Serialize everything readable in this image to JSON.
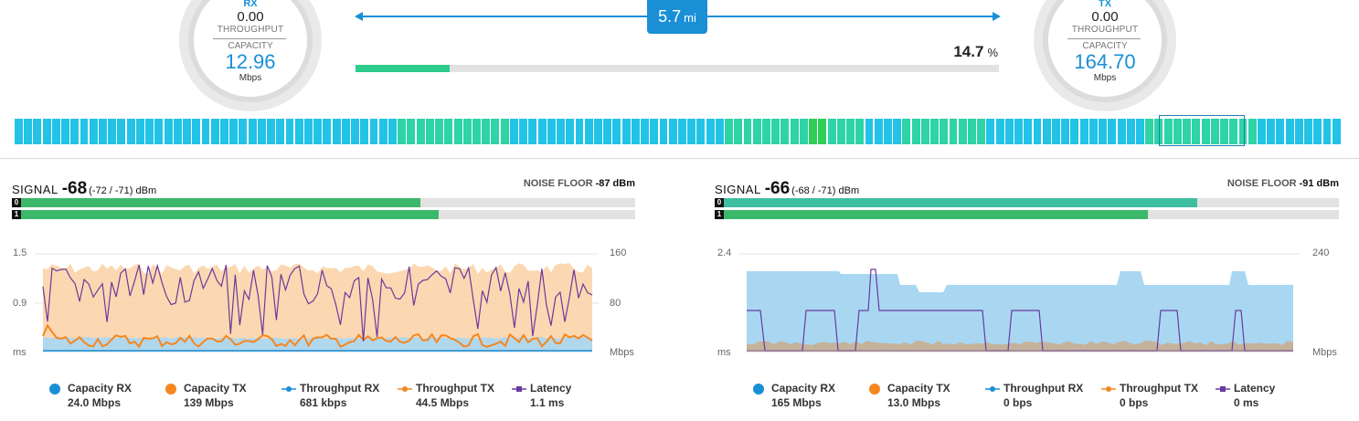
{
  "rx_gauge": {
    "direction": "RX",
    "throughput": "0.00",
    "throughput_label": "THROUGHPUT",
    "capacity_label": "CAPACITY",
    "capacity": "12.96",
    "unit": "Mbps"
  },
  "tx_gauge": {
    "direction": "TX",
    "throughput": "0.00",
    "throughput_label": "THROUGHPUT",
    "capacity_label": "CAPACITY",
    "capacity": "164.70",
    "unit": "Mbps"
  },
  "distance": {
    "value": "5.7",
    "unit": "mi"
  },
  "airtime": {
    "value": "14.7",
    "unit": "%",
    "fraction": 0.147
  },
  "colors": {
    "accent": "#1a8fd6",
    "capacity_rx": "#1a8fd6",
    "capacity_tx": "#f5871f",
    "throughput_rx": "#1a8fd6",
    "throughput_tx": "#f5871f",
    "latency": "#6a3a9c",
    "signal_green": "#3cb86a",
    "signal_teal": "#3cbfa0"
  },
  "spectrum_levels": [
    0,
    0,
    0,
    0,
    0,
    0,
    0,
    0,
    0,
    0,
    0,
    0,
    0,
    0,
    0,
    0,
    0,
    0,
    0,
    0,
    0,
    0,
    0,
    0,
    0,
    0,
    0,
    0,
    0,
    0,
    0,
    0,
    0,
    0,
    0,
    0,
    0,
    0,
    0,
    0,
    0,
    1,
    1,
    1,
    1,
    1,
    1,
    1,
    1,
    1,
    1,
    1,
    1,
    0,
    0,
    0,
    0,
    0,
    0,
    0,
    0,
    0,
    0,
    0,
    0,
    0,
    0,
    0,
    0,
    0,
    0,
    0,
    0,
    0,
    0,
    0,
    1,
    1,
    1,
    1,
    1,
    1,
    1,
    1,
    1,
    2,
    2,
    1,
    1,
    1,
    1,
    0,
    0,
    0,
    0,
    1,
    1,
    1,
    1,
    1,
    1,
    1,
    1,
    1,
    0,
    0,
    0,
    0,
    0,
    0,
    0,
    0,
    0,
    0,
    0,
    0,
    0,
    0,
    0,
    0,
    0,
    1,
    1,
    1,
    1,
    1,
    1,
    1,
    1,
    1,
    1,
    1,
    1,
    0,
    0,
    0,
    0,
    0,
    0,
    0,
    0,
    0
  ],
  "left": {
    "signal_label": "SIGNAL",
    "signal_value": "-68",
    "signal_chains": "(-72 / -71) dBm",
    "noise_label": "NOISE FLOOR",
    "noise_value": "-87 dBm",
    "chains": [
      {
        "id": "0",
        "level": 0.65
      },
      {
        "id": "1",
        "level": 0.68
      }
    ],
    "y_left": [
      "1.5",
      "0.9",
      "ms"
    ],
    "y_right": [
      "160",
      "80",
      "Mbps"
    ],
    "legend": [
      {
        "name": "Capacity RX",
        "value": "24.0 Mbps"
      },
      {
        "name": "Capacity TX",
        "value": "139 Mbps"
      },
      {
        "name": "Throughput RX",
        "value": "681 kbps"
      },
      {
        "name": "Throughput TX",
        "value": "44.5 Mbps"
      },
      {
        "name": "Latency",
        "value": "1.1 ms"
      }
    ]
  },
  "right": {
    "signal_label": "SIGNAL",
    "signal_value": "-66",
    "signal_chains": "(-68 / -71) dBm",
    "noise_label": "NOISE FLOOR",
    "noise_value": "-91 dBm",
    "chains": [
      {
        "id": "0",
        "level": 0.77
      },
      {
        "id": "1",
        "level": 0.69
      }
    ],
    "y_left": [
      "2.4",
      "ms"
    ],
    "y_right": [
      "240",
      "Mbps"
    ],
    "legend": [
      {
        "name": "Capacity RX",
        "value": "165 Mbps"
      },
      {
        "name": "Capacity TX",
        "value": "13.0 Mbps"
      },
      {
        "name": "Throughput RX",
        "value": "0 bps"
      },
      {
        "name": "Throughput TX",
        "value": "0 bps"
      },
      {
        "name": "Latency",
        "value": "0 ms"
      }
    ]
  }
}
